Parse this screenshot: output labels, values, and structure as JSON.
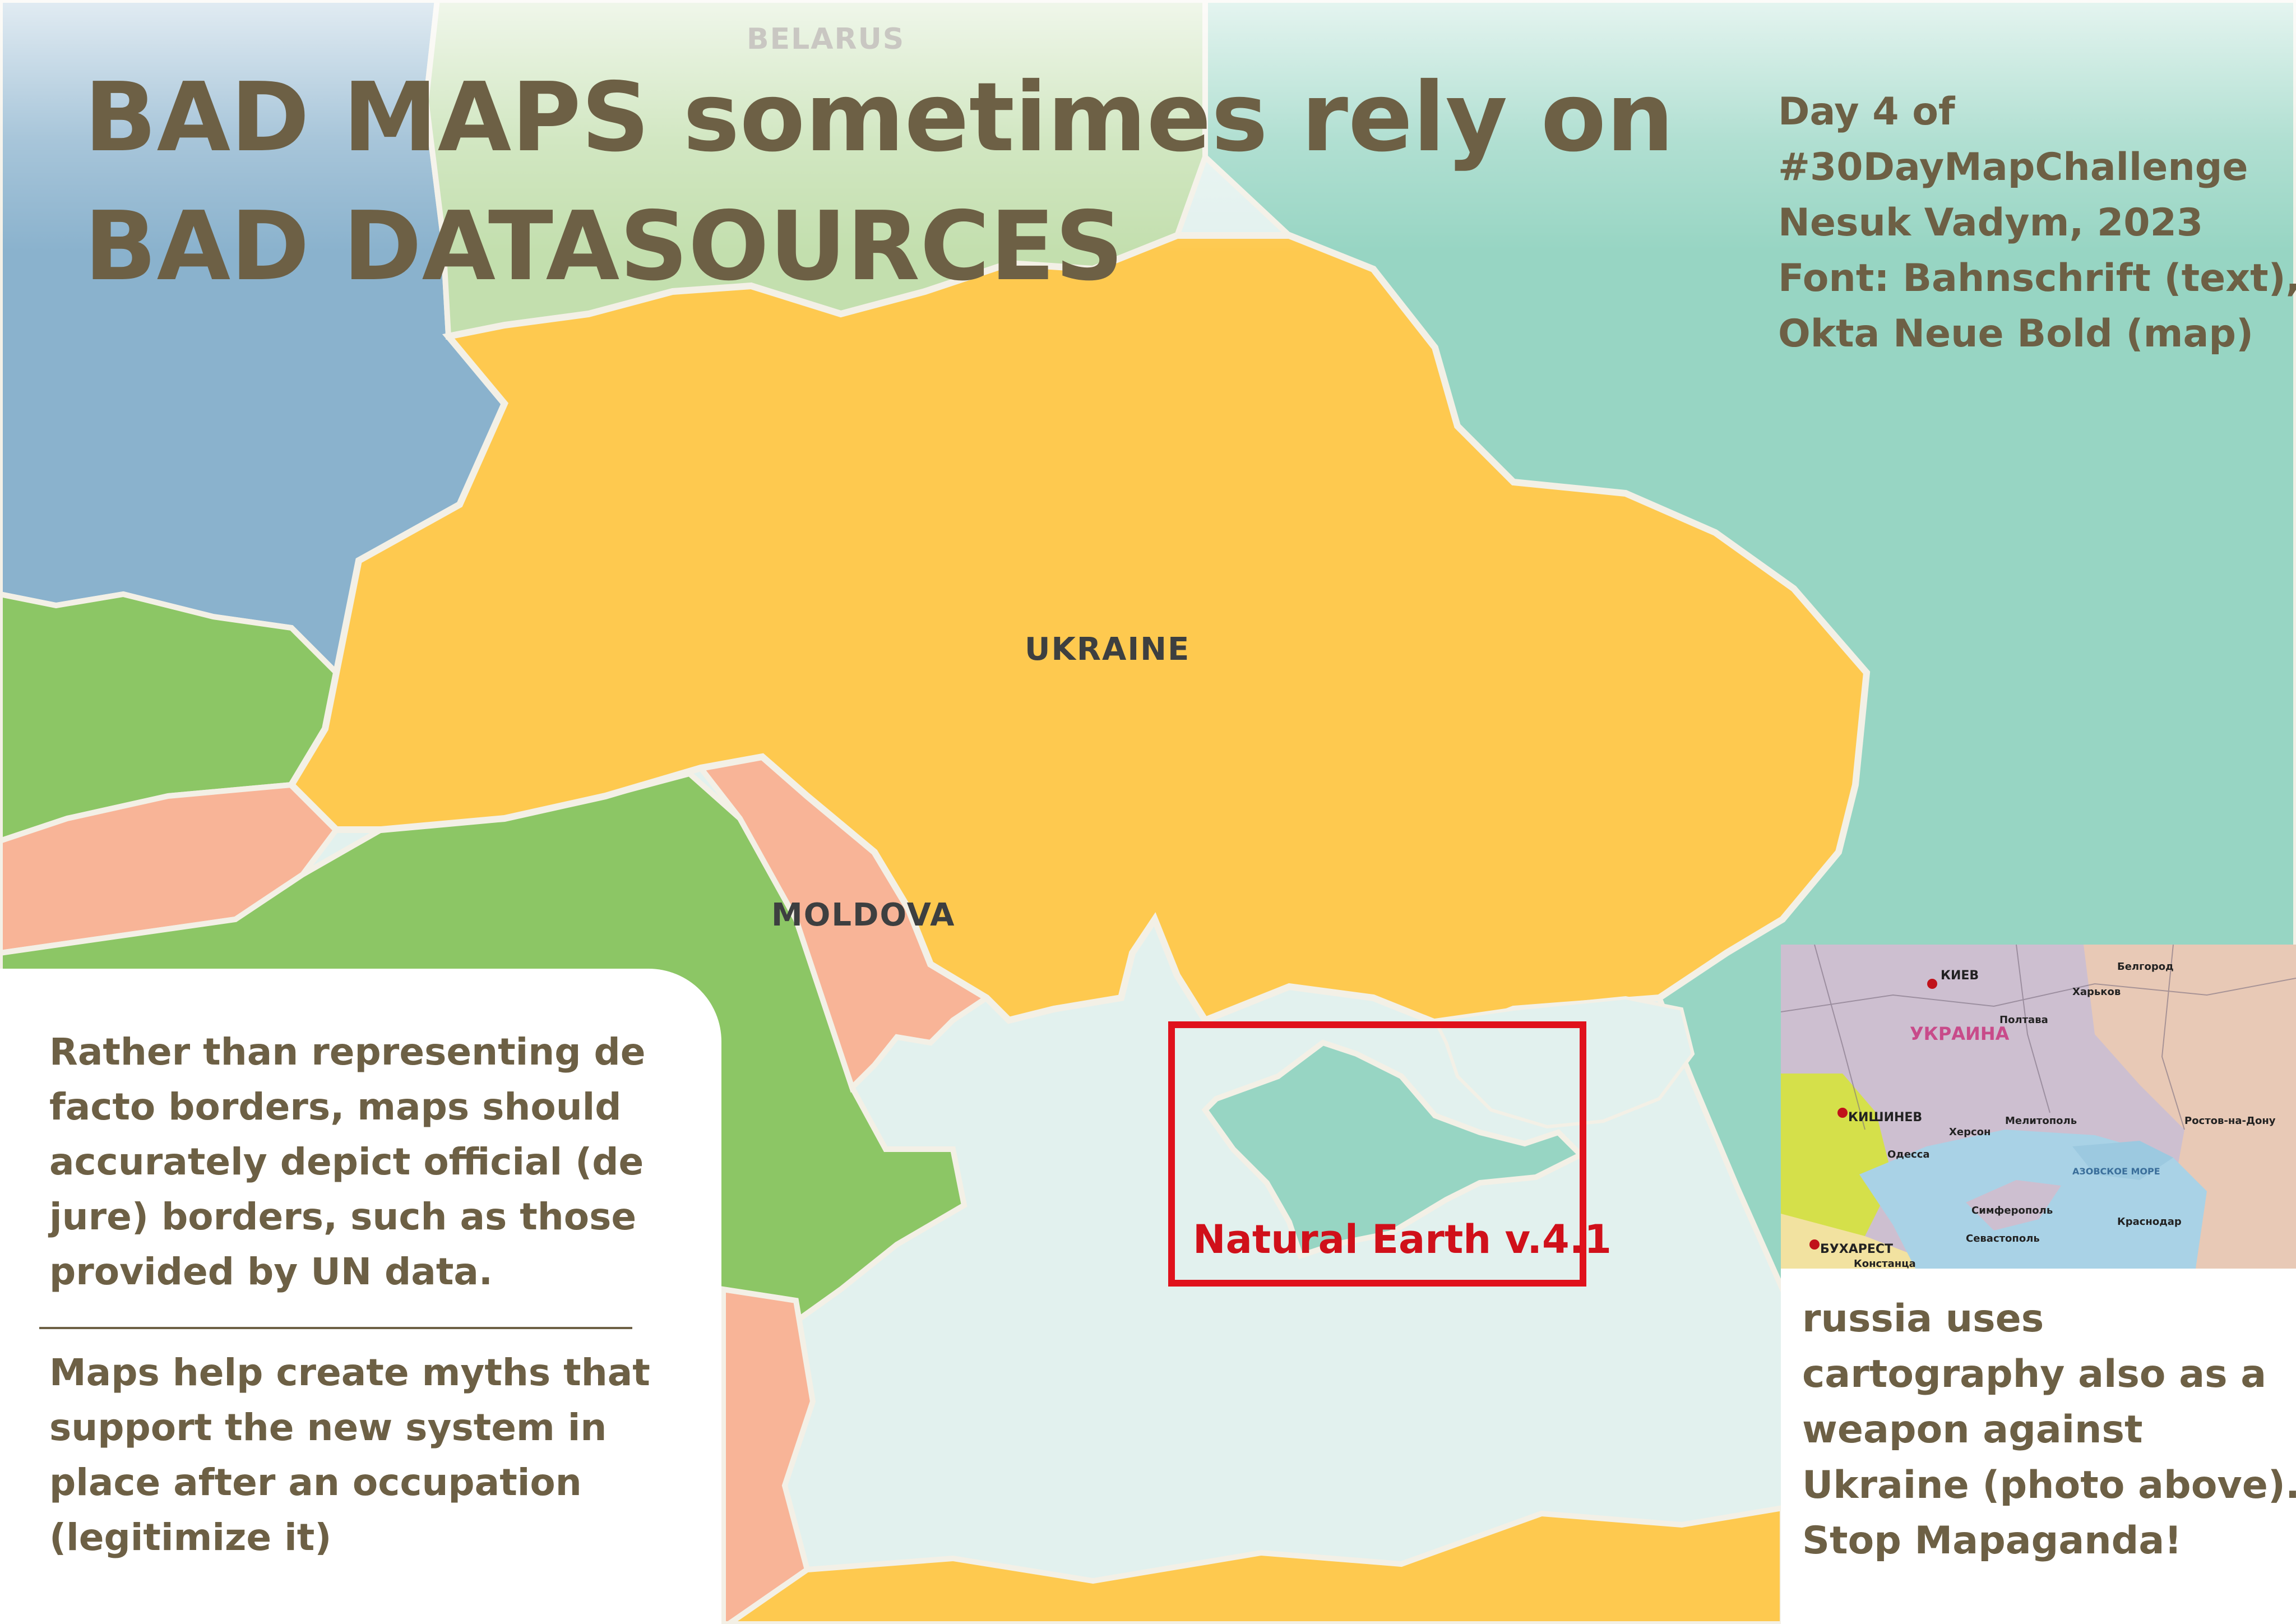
{
  "title": {
    "line1": "BAD MAPS sometimes rely on",
    "line2": "BAD DATASOURCES"
  },
  "credits": {
    "line1": "Day 4 of",
    "line2": "#30DayMapChallenge",
    "line3": "Nesuk Vadym, 2023",
    "line4": "Font: Bahnschrift (text),",
    "line5": "Okta Neue Bold (map)"
  },
  "map": {
    "labels": {
      "belarus": "BELARUS",
      "ukraine": "UKRAINE",
      "moldova": "MOLDOVA"
    },
    "highlight_label": "Natural Earth v.4.1",
    "colors": {
      "ukraine": "#fec94f",
      "belarus": "#c3dfae",
      "poland": "#8ab2cd",
      "russia_occupied": "#97d5c3",
      "moldova": "#f8b497",
      "romania_green": "#8cc665",
      "sea": "#e2f1ee",
      "highlight_box": "#e0121c",
      "text": "#6d6045"
    }
  },
  "left_panel": {
    "para1": [
      "Rather than representing de",
      "facto borders, maps should",
      "accurately depict official (de",
      "jure) borders, such as those",
      "provided by UN data."
    ],
    "para2": [
      "Maps help create myths that",
      "support the new system in",
      "place after an occupation",
      "(legitimize it)"
    ]
  },
  "photo": {
    "labels": [
      "КИЕВ",
      "Харьков",
      "Белгород",
      "Полтава",
      "КИШИНЕВ",
      "Одесса",
      "Херсон",
      "Мелитополь",
      "Ростов-на-Дону",
      "Симферополь",
      "Севастополь",
      "БУХАРЕСТ",
      "Констанца",
      "Краснодар",
      "УКРАИНА",
      "АЗОВСКОЕ МОРЕ"
    ]
  },
  "right_panel": {
    "lines": [
      "russia uses",
      "cartography also as a",
      "weapon against",
      "Ukraine (photo above).",
      "Stop Mapaganda!"
    ]
  }
}
